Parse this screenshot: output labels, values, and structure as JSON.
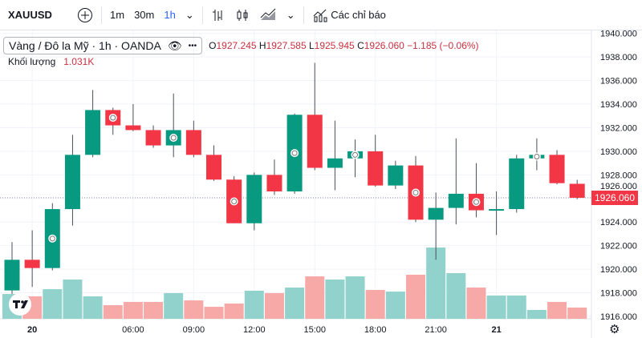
{
  "toolbar": {
    "symbol": "XAUUSD",
    "add_icon": "plus-circle-icon",
    "intervals": [
      "1m",
      "30m",
      "1h"
    ],
    "active_interval": "1h",
    "indicators_label": "Các chỉ báo"
  },
  "legend": {
    "title": "Vàng / Đô la Mỹ · 1h · OANDA",
    "o_label": "O",
    "o": "1927.245",
    "h_label": "H",
    "h": "1927.585",
    "l_label": "L",
    "l": "1925.945",
    "c_label": "C",
    "c": "1926.060",
    "change": "−1.185 (−0.06%)"
  },
  "volume_legend": {
    "label": "Khối lượng",
    "value": "1.031K"
  },
  "current_price": "1926.060",
  "colors": {
    "up": "#089981",
    "down": "#f23645",
    "vol_up": "#92d2cc",
    "vol_down": "#f7a9a7"
  },
  "chart_data": {
    "type": "candlestick",
    "symbol": "XAUUSD",
    "interval": "1h",
    "ylim": [
      1915.6,
      1940.6
    ],
    "y_ticks": [
      "1916.000",
      "1918.000",
      "1920.000",
      "1922.000",
      "1924.000",
      "1926.000",
      "1928.000",
      "1930.000",
      "1932.000",
      "1934.000",
      "1936.000",
      "1938.000",
      "1940.000"
    ],
    "x_ticks": [
      {
        "index": 1,
        "label": "20"
      },
      {
        "index": 6,
        "label": "06:00"
      },
      {
        "index": 9,
        "label": "09:00"
      },
      {
        "index": 12,
        "label": "12:00"
      },
      {
        "index": 15,
        "label": "15:00"
      },
      {
        "index": 18,
        "label": "18:00"
      },
      {
        "index": 21,
        "label": "21:00"
      },
      {
        "index": 24,
        "label": "21"
      }
    ],
    "candles": [
      [
        1918.2,
        1922.3,
        1917.9,
        1920.8
      ],
      [
        1920.8,
        1923.3,
        1918.5,
        1920.1
      ],
      [
        1920.1,
        1925.6,
        1919.9,
        1925.1
      ],
      [
        1925.1,
        1931.4,
        1923.7,
        1929.7
      ],
      [
        1929.7,
        1935.2,
        1929.5,
        1933.5
      ],
      [
        1933.5,
        1933.7,
        1931.4,
        1932.2
      ],
      [
        1932.2,
        1934.0,
        1931.7,
        1931.8
      ],
      [
        1931.8,
        1932.2,
        1930.3,
        1930.5
      ],
      [
        1930.5,
        1934.9,
        1929.5,
        1931.8
      ],
      [
        1931.8,
        1932.6,
        1929.5,
        1929.7
      ],
      [
        1929.7,
        1930.5,
        1927.5,
        1927.6
      ],
      [
        1927.6,
        1927.9,
        1923.9,
        1923.9
      ],
      [
        1923.9,
        1928.2,
        1923.3,
        1928.0
      ],
      [
        1928.0,
        1929.3,
        1926.3,
        1926.6
      ],
      [
        1926.6,
        1933.2,
        1926.4,
        1933.1
      ],
      [
        1933.1,
        1937.5,
        1928.4,
        1928.6
      ],
      [
        1928.6,
        1932.6,
        1926.7,
        1929.4
      ],
      [
        1929.4,
        1931.0,
        1927.8,
        1930.0
      ],
      [
        1930.0,
        1931.4,
        1927.0,
        1927.1
      ],
      [
        1927.1,
        1929.2,
        1926.8,
        1928.8
      ],
      [
        1928.8,
        1929.6,
        1924.0,
        1924.2
      ],
      [
        1924.2,
        1926.5,
        1920.8,
        1925.2
      ],
      [
        1925.2,
        1931.1,
        1923.8,
        1926.4
      ],
      [
        1926.4,
        1929.0,
        1924.4,
        1925.0
      ],
      [
        1925.0,
        1926.6,
        1922.9,
        1925.1
      ],
      [
        1925.1,
        1929.7,
        1924.8,
        1929.4
      ],
      [
        1929.4,
        1931.1,
        1928.4,
        1929.7
      ],
      [
        1929.7,
        1930.1,
        1927.2,
        1927.3
      ],
      [
        1927.245,
        1927.585,
        1925.945,
        1926.06
      ]
    ],
    "candle_fields": [
      "open",
      "high",
      "low",
      "close"
    ],
    "volume_k": [
      2.28,
      2.06,
      2.72,
      3.61,
      2.06,
      1.25,
      1.55,
      1.55,
      2.36,
      1.69,
      1.1,
      1.4,
      2.58,
      2.36,
      2.87,
      3.9,
      3.61,
      3.9,
      2.65,
      2.5,
      4.05,
      6.55,
      4.2,
      2.87,
      2.14,
      2.14,
      0.81,
      1.55,
      1.031
    ],
    "event_markers": [
      2,
      5,
      8,
      11,
      14,
      17,
      20,
      23,
      26
    ]
  }
}
